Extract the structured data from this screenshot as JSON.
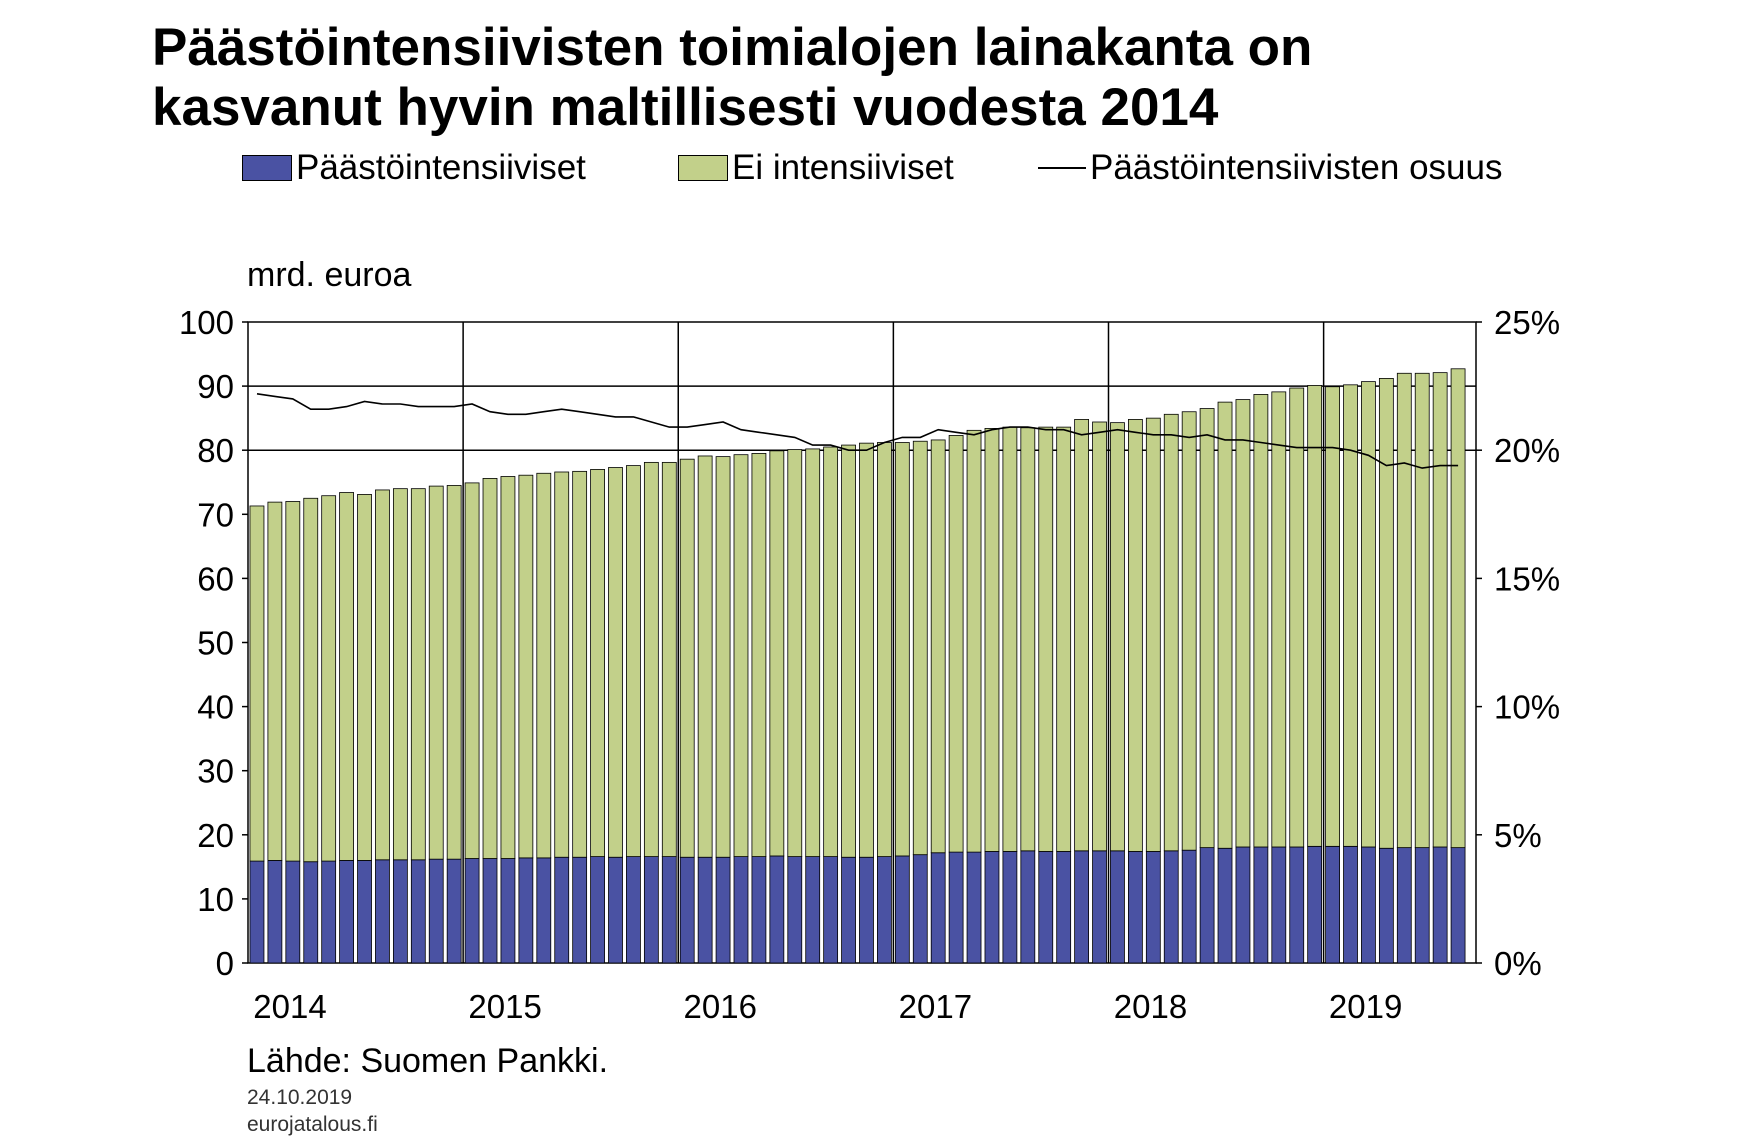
{
  "title_lines": [
    "Päästöintensiivisten toimialojen lainakanta on",
    "kasvanut hyvin maltillisesti vuodesta 2014"
  ],
  "legend": {
    "intensive": "Päästöintensiiviset",
    "non_intensive": "Ei intensiiviset",
    "share": "Päästöintensiivisten osuus"
  },
  "unit_label": "mrd. euroa",
  "source": "Lähde: Suomen Pankki.",
  "date": "24.10.2019",
  "website": "eurojatalous.fi",
  "colors": {
    "intensive": "#4a52a3",
    "non_intensive": "#c2d08a",
    "share_line": "#000000",
    "grid": "#000000"
  },
  "chart_data": {
    "type": "bar",
    "stacked": true,
    "frequency": "monthly",
    "x_start": "2014-01",
    "x_end": "2019-08",
    "year_ticks": [
      "2014",
      "2015",
      "2016",
      "2017",
      "2018",
      "2019"
    ],
    "ylim": [
      0,
      100
    ],
    "yticks": [
      "0",
      "10",
      "20",
      "30",
      "40",
      "50",
      "60",
      "70",
      "80",
      "90",
      "100"
    ],
    "y2lim": [
      0,
      25
    ],
    "y2ticks": [
      "0%",
      "5%",
      "10%",
      "15%",
      "20%",
      "25%"
    ],
    "grid": "horizontal lines at 80, 90, 100; vertical lines at each year start",
    "legend_position": "top",
    "series": [
      {
        "name": "Päästöintensiiviset",
        "type": "bar",
        "axis": "left",
        "values": [
          15.9,
          16.0,
          15.9,
          15.8,
          15.9,
          16.0,
          16.0,
          16.1,
          16.1,
          16.1,
          16.2,
          16.2,
          16.3,
          16.3,
          16.3,
          16.4,
          16.4,
          16.5,
          16.5,
          16.6,
          16.5,
          16.6,
          16.6,
          16.6,
          16.5,
          16.5,
          16.5,
          16.6,
          16.6,
          16.7,
          16.6,
          16.6,
          16.6,
          16.5,
          16.5,
          16.6,
          16.7,
          16.9,
          17.2,
          17.3,
          17.3,
          17.4,
          17.4,
          17.5,
          17.4,
          17.4,
          17.5,
          17.5,
          17.5,
          17.4,
          17.4,
          17.5,
          17.6,
          18.0,
          17.9,
          18.1,
          18.1,
          18.1,
          18.1,
          18.2,
          18.2,
          18.2,
          18.1,
          17.9,
          18.0,
          18.0,
          18.1,
          18.0
        ]
      },
      {
        "name": "Ei intensiiviset",
        "type": "bar",
        "axis": "left",
        "values": [
          55.4,
          55.9,
          56.1,
          56.7,
          57.0,
          57.4,
          57.1,
          57.7,
          57.9,
          57.9,
          58.2,
          58.3,
          58.6,
          59.3,
          59.6,
          59.7,
          60.0,
          60.1,
          60.2,
          60.4,
          60.8,
          61.0,
          61.5,
          61.5,
          62.1,
          62.6,
          62.5,
          62.7,
          62.9,
          63.2,
          63.5,
          63.6,
          63.9,
          64.3,
          64.6,
          64.6,
          64.5,
          64.5,
          64.4,
          65.0,
          65.8,
          66.0,
          66.2,
          66.0,
          66.2,
          66.2,
          67.3,
          66.9,
          66.8,
          67.4,
          67.6,
          68.1,
          68.4,
          68.5,
          69.6,
          69.8,
          70.6,
          71.0,
          71.6,
          71.9,
          71.7,
          72.0,
          72.6,
          73.3,
          74.0,
          74.0,
          74.0,
          74.7
        ]
      },
      {
        "name": "Päästöintensiivisten osuus",
        "type": "line",
        "axis": "right",
        "values": [
          22.2,
          22.1,
          22.0,
          21.6,
          21.6,
          21.7,
          21.9,
          21.8,
          21.8,
          21.7,
          21.7,
          21.7,
          21.8,
          21.5,
          21.4,
          21.4,
          21.5,
          21.6,
          21.5,
          21.4,
          21.3,
          21.3,
          21.1,
          20.9,
          20.9,
          21.0,
          21.1,
          20.8,
          20.7,
          20.6,
          20.5,
          20.2,
          20.2,
          20.0,
          20.0,
          20.3,
          20.5,
          20.5,
          20.8,
          20.7,
          20.6,
          20.8,
          20.9,
          20.9,
          20.8,
          20.8,
          20.6,
          20.7,
          20.8,
          20.7,
          20.6,
          20.6,
          20.5,
          20.6,
          20.4,
          20.4,
          20.3,
          20.2,
          20.1,
          20.1,
          20.1,
          20.0,
          19.8,
          19.4,
          19.5,
          19.3,
          19.4,
          19.4
        ]
      }
    ]
  }
}
